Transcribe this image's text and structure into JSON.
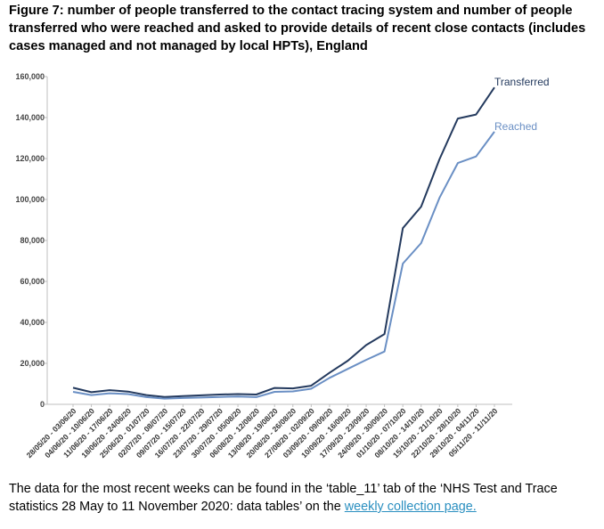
{
  "figure": {
    "title": "Figure 7: number of people transferred to the contact tracing system and number of people transferred who were reached and asked to provide details of recent close contacts (includes cases managed and not managed by local HPTs), England"
  },
  "footnote": {
    "text_before": "The data for the most recent weeks can be found in the ‘table_11’ tab of the ‘NHS Test and Trace statistics 28 May to 11 November 2020: data tables’ on the ",
    "link_text": "weekly collection page.",
    "link_color": "#2a8fc0"
  },
  "chart_data": {
    "type": "line",
    "title": "",
    "xlabel": "",
    "ylabel": "",
    "ylim": [
      0,
      160000
    ],
    "y_ticks": [
      0,
      20000,
      40000,
      60000,
      80000,
      100000,
      120000,
      140000,
      160000
    ],
    "y_tick_labels": [
      "0",
      "20,000",
      "40,000",
      "60,000",
      "80,000",
      "100,000",
      "120,000",
      "140,000",
      "160,000"
    ],
    "grid": false,
    "legend": "none",
    "categories": [
      "28/05/20 - 03/06/20",
      "04/06/20 - 10/06/20",
      "11/06/20 - 17/06/20",
      "18/06/20 - 24/06/20",
      "25/06/20 - 01/07/20",
      "02/07/20 - 08/07/20",
      "09/07/20 - 15/07/20",
      "16/07/20 - 22/07/20",
      "23/07/20 - 29/07/20",
      "30/07/20 - 05/08/20",
      "06/08/20 - 12/08/20",
      "13/08/20 - 19/08/20",
      "20/08/20 - 26/08/20",
      "27/08/20 - 02/09/20",
      "03/09/20 - 09/09/20",
      "10/09/20 - 16/09/20",
      "17/09/20 - 23/09/20",
      "24/09/20 - 30/09/20",
      "01/10/20 - 07/10/20",
      "08/10/20 - 14/10/20",
      "15/10/20 - 21/10/20",
      "22/10/20 - 28/10/20",
      "29/10/20 - 04/11/20",
      "05/11/20 - 11/11/20"
    ],
    "series": [
      {
        "name": "Transferred",
        "color": "#243a5e",
        "values": [
          8100,
          5900,
          6900,
          6200,
          4500,
          3600,
          4000,
          4400,
          4800,
          5000,
          4800,
          8000,
          7800,
          9100,
          15400,
          21300,
          28900,
          34300,
          86000,
          96500,
          119600,
          139500,
          141500,
          154700
        ]
      },
      {
        "name": "Reached",
        "color": "#6a8fc4",
        "values": [
          6100,
          4500,
          5400,
          5000,
          3500,
          2800,
          3100,
          3300,
          3600,
          3800,
          3500,
          6100,
          6300,
          7600,
          12900,
          17300,
          21700,
          25800,
          68700,
          78700,
          100800,
          117800,
          121000,
          133100
        ]
      }
    ]
  }
}
